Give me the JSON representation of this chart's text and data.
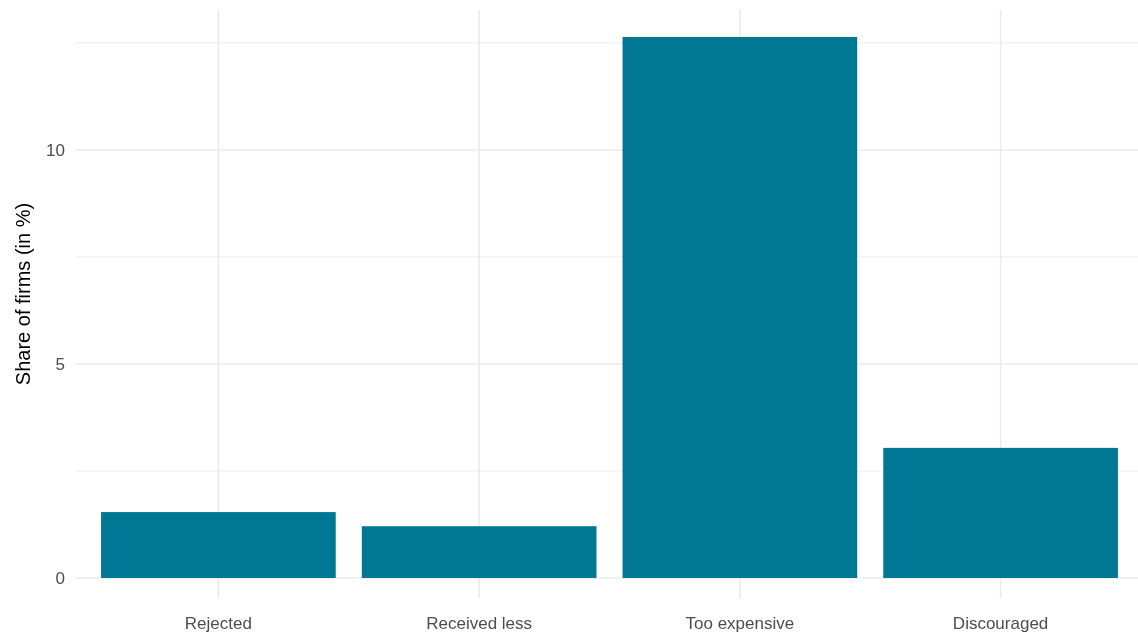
{
  "chart_data": {
    "type": "bar",
    "ylabel": "Share of firms (in %)",
    "categories": [
      "Rejected",
      "Received less",
      "Too expensive",
      "Discouraged"
    ],
    "values": [
      1.54,
      1.21,
      12.64,
      3.04
    ],
    "color": "#007893",
    "ylim": [
      0,
      13.27
    ],
    "yticks": [
      0,
      {
        "value": 2.5,
        "label": null
      },
      5,
      {
        "value": 7.5,
        "label": null
      },
      10,
      {
        "value": 12.5,
        "label": null
      }
    ],
    "grid": true
  }
}
